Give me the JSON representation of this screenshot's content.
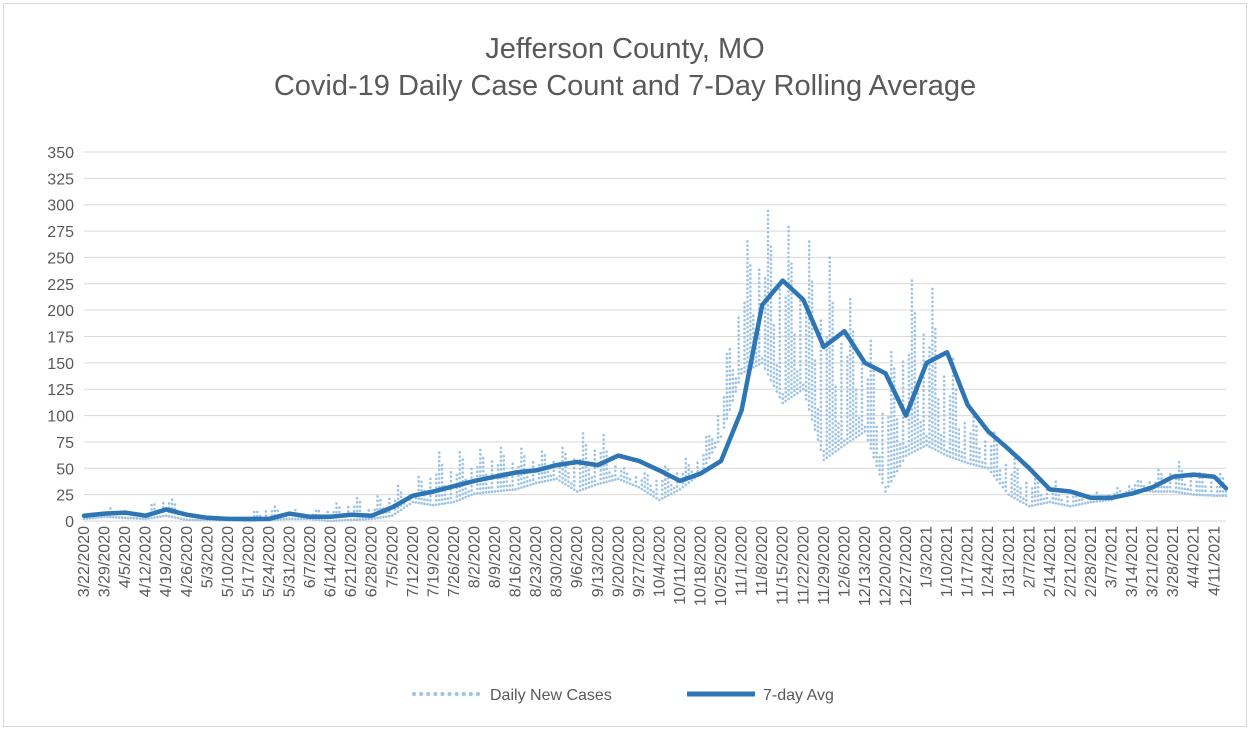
{
  "chart_data": {
    "type": "line",
    "title": "Jefferson County, MO",
    "subtitle": "Covid-19 Daily Case Count and 7-Day Rolling Average",
    "xlabel": "",
    "ylabel": "",
    "ylim": [
      0,
      350
    ],
    "y_ticks": [
      0,
      25,
      50,
      75,
      100,
      125,
      150,
      175,
      200,
      225,
      250,
      275,
      300,
      325,
      350
    ],
    "grid": true,
    "legend": "bottom",
    "colors": {
      "daily": "#9dc3e6",
      "avg": "#2e75b6",
      "grid": "#d9d9d9",
      "text": "#595959"
    },
    "x_start": "2020-03-22",
    "x_end": "2021-04-15",
    "x_tick_labels": [
      "3/22/2020",
      "3/29/2020",
      "4/5/2020",
      "4/12/2020",
      "4/19/2020",
      "4/26/2020",
      "5/3/2020",
      "5/10/2020",
      "5/17/2020",
      "5/24/2020",
      "5/31/2020",
      "6/7/2020",
      "6/14/2020",
      "6/21/2020",
      "6/28/2020",
      "7/5/2020",
      "7/12/2020",
      "7/19/2020",
      "7/26/2020",
      "8/2/2020",
      "8/9/2020",
      "8/16/2020",
      "8/23/2020",
      "8/30/2020",
      "9/6/2020",
      "9/13/2020",
      "9/20/2020",
      "9/27/2020",
      "10/4/2020",
      "10/11/2020",
      "10/18/2020",
      "10/25/2020",
      "11/1/2020",
      "11/8/2020",
      "11/15/2020",
      "11/22/2020",
      "11/29/2020",
      "12/6/2020",
      "12/13/2020",
      "12/20/2020",
      "12/27/2020",
      "1/3/2021",
      "1/10/2021",
      "1/17/2021",
      "1/24/2021",
      "1/31/2021",
      "2/7/2021",
      "2/14/2021",
      "2/21/2021",
      "2/28/2021",
      "3/7/2021",
      "3/14/2021",
      "3/21/2021",
      "3/28/2021",
      "4/4/2021",
      "4/11/2021"
    ],
    "series": [
      {
        "name": "Daily New Cases",
        "style": "dotted",
        "weekly_min": [
          2,
          4,
          3,
          2,
          5,
          1,
          1,
          1,
          0,
          1,
          2,
          2,
          0,
          1,
          2,
          5,
          18,
          15,
          18,
          26,
          28,
          30,
          36,
          40,
          28,
          35,
          40,
          32,
          20,
          30,
          45,
          80,
          140,
          150,
          112,
          125,
          58,
          72,
          85,
          28,
          62,
          72,
          62,
          55,
          50,
          25,
          14,
          18,
          14,
          18,
          20,
          30,
          28,
          28,
          25,
          24
        ],
        "weekly_max": [
          7,
          14,
          10,
          13,
          30,
          8,
          5,
          5,
          5,
          20,
          12,
          8,
          18,
          26,
          20,
          36,
          34,
          67,
          70,
          72,
          76,
          70,
          72,
          70,
          82,
          96,
          55,
          48,
          55,
          60,
          64,
          128,
          258,
          308,
          297,
          275,
          275,
          228,
          195,
          142,
          233,
          252,
          178,
          112,
          95,
          68,
          52,
          42,
          32,
          28,
          30,
          40,
          48,
          60,
          52,
          46
        ]
      },
      {
        "name": "7-day Avg",
        "style": "solid",
        "weekly": [
          5,
          7,
          8,
          5,
          11,
          6,
          3,
          2,
          2,
          2,
          7,
          4,
          4,
          6,
          5,
          13,
          24,
          28,
          33,
          38,
          42,
          46,
          48,
          53,
          56,
          53,
          62,
          57,
          48,
          38,
          45,
          57,
          105,
          205,
          228,
          210,
          165,
          180,
          150,
          140,
          100,
          150,
          160,
          110,
          85,
          68,
          50,
          30,
          28,
          22,
          22,
          26,
          32,
          42,
          44,
          42,
          31
        ]
      }
    ]
  }
}
